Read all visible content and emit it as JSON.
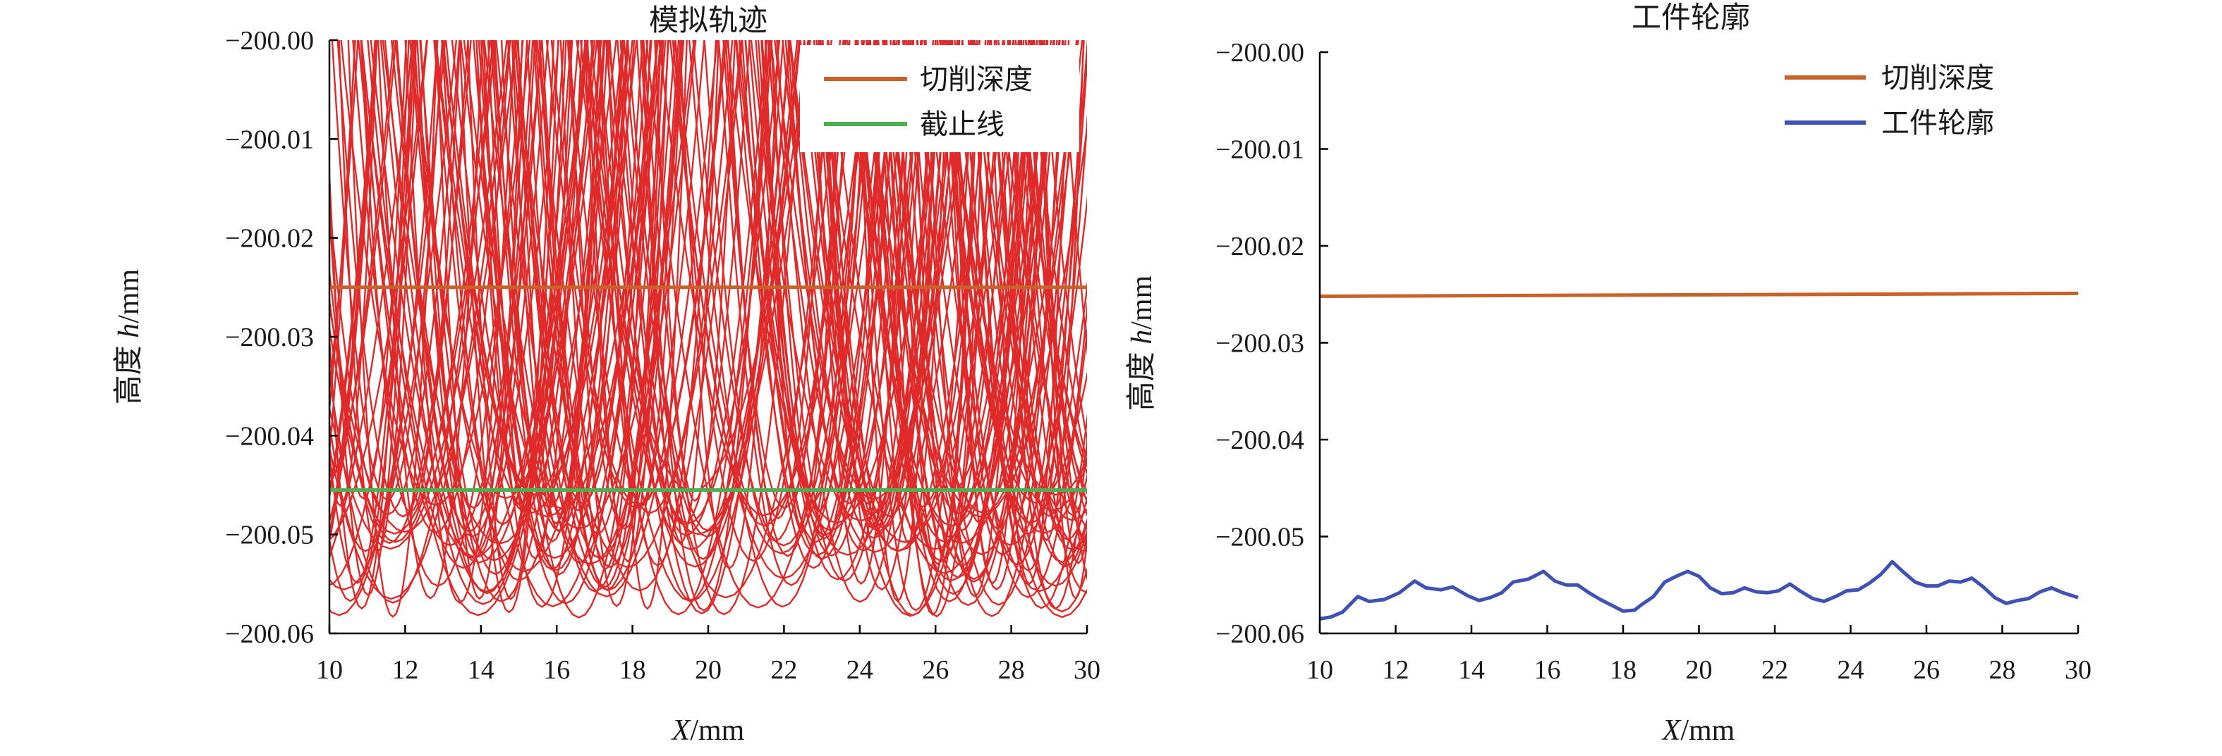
{
  "chart_data": [
    {
      "type": "line",
      "title": "模拟轨迹",
      "xlabel_prefix": "X",
      "xlabel_unit": "/mm",
      "ylabel_prefix": "高度 ",
      "ylabel_var": "h",
      "ylabel_unit": "/mm",
      "xlim": [
        10,
        30
      ],
      "ylim": [
        -200.06,
        -200.0
      ],
      "x_ticks": [
        "10",
        "12",
        "14",
        "16",
        "18",
        "20",
        "22",
        "24",
        "26",
        "28",
        "30"
      ],
      "y_ticks": [
        "−200.00",
        "−200.01",
        "−200.02",
        "−200.03",
        "−200.04",
        "−200.05",
        "−200.06"
      ],
      "grid": false,
      "legend_position": "top-right",
      "series": [
        {
          "name": "切削深度",
          "color": "#c8622a",
          "x": [
            10,
            30
          ],
          "y": [
            -200.025,
            -200.025
          ]
        },
        {
          "name": "截止线",
          "color": "#4caf50",
          "x": [
            10,
            30
          ],
          "y": [
            -200.0455,
            -200.0455
          ]
        }
      ],
      "trajectory_arcs": {
        "color": "#e02a2a",
        "description_count": 260,
        "min_depth_range": [
          -200.0585,
          -200.0455
        ],
        "arc_half_width_range_mm": [
          0.6,
          2.0
        ]
      }
    },
    {
      "type": "line",
      "title": "工件轮廓",
      "xlabel_prefix": "X",
      "xlabel_unit": "/mm",
      "ylabel_prefix": "高度 ",
      "ylabel_var": "h",
      "ylabel_unit": "/mm",
      "xlim": [
        10,
        30
      ],
      "ylim": [
        -200.06,
        -200.0
      ],
      "x_ticks": [
        "10",
        "12",
        "14",
        "16",
        "18",
        "20",
        "22",
        "24",
        "26",
        "28",
        "30"
      ],
      "y_ticks": [
        "−200.00",
        "−200.01",
        "−200.02",
        "−200.03",
        "−200.04",
        "−200.05",
        "−200.06"
      ],
      "grid": false,
      "legend_position": "top-right",
      "series": [
        {
          "name": "切削深度",
          "color": "#c8622a",
          "x": [
            10,
            30
          ],
          "y": [
            -200.0252,
            -200.0249
          ]
        },
        {
          "name": "工件轮廓",
          "color": "#3f51b5",
          "x": [
            10.0,
            10.3,
            10.6,
            11.0,
            11.3,
            11.7,
            12.1,
            12.5,
            12.8,
            13.2,
            13.5,
            13.9,
            14.2,
            14.5,
            14.8,
            15.1,
            15.5,
            15.9,
            16.2,
            16.5,
            16.8,
            17.1,
            17.4,
            17.7,
            18.0,
            18.3,
            18.5,
            18.8,
            19.1,
            19.4,
            19.7,
            20.0,
            20.3,
            20.6,
            20.9,
            21.2,
            21.5,
            21.8,
            22.1,
            22.4,
            22.7,
            23.0,
            23.3,
            23.6,
            23.9,
            24.2,
            24.5,
            24.8,
            25.1,
            25.4,
            25.7,
            26.0,
            26.3,
            26.6,
            26.9,
            27.2,
            27.5,
            27.8,
            28.1,
            28.4,
            28.7,
            29.0,
            29.3,
            29.6,
            30.0
          ],
          "y": [
            -200.0585,
            -200.0583,
            -200.0578,
            -200.0562,
            -200.0567,
            -200.0565,
            -200.0558,
            -200.0546,
            -200.0553,
            -200.0555,
            -200.0552,
            -200.0561,
            -200.0566,
            -200.0563,
            -200.0558,
            -200.0547,
            -200.0544,
            -200.0536,
            -200.0546,
            -200.055,
            -200.055,
            -200.0558,
            -200.0565,
            -200.0571,
            -200.0577,
            -200.0576,
            -200.057,
            -200.0562,
            -200.0547,
            -200.0541,
            -200.0536,
            -200.0541,
            -200.0553,
            -200.0559,
            -200.0558,
            -200.0553,
            -200.0557,
            -200.0558,
            -200.0556,
            -200.0549,
            -200.0557,
            -200.0564,
            -200.0567,
            -200.0562,
            -200.0556,
            -200.0555,
            -200.0548,
            -200.0539,
            -200.0526,
            -200.0537,
            -200.0547,
            -200.0551,
            -200.0551,
            -200.0546,
            -200.0547,
            -200.0543,
            -200.0552,
            -200.0563,
            -200.0569,
            -200.0566,
            -200.0564,
            -200.0557,
            -200.0553,
            -200.0558,
            -200.0563
          ]
        }
      ]
    }
  ]
}
